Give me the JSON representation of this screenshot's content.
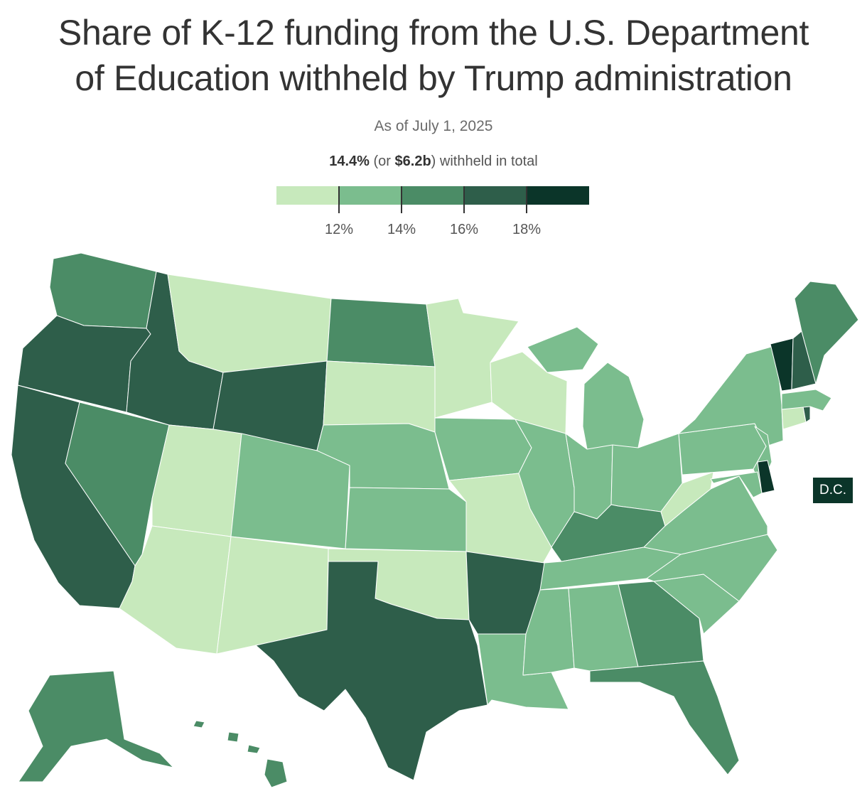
{
  "title_line1": "Share of K-12 funding from the U.S. Department",
  "title_line2": "of Education withheld by Trump administration",
  "subtitle": "As of July 1, 2025",
  "total": {
    "percent": "14.4%",
    "pre": " (or ",
    "amount": "$6.2b",
    "post": ") withheld in total"
  },
  "legend": {
    "bins": [
      "#c7e9bc",
      "#7bbd8e",
      "#4b8c66",
      "#2e5e4a",
      "#0b3529"
    ],
    "ticks": [
      "12%",
      "14%",
      "16%",
      "18%"
    ]
  },
  "dc_label": "D.C.",
  "dc_color": "#0b3529",
  "map_data": {
    "WA": 3,
    "OR": 4,
    "CA": 4,
    "NV": 3,
    "ID": 4,
    "MT": 1,
    "WY": 4,
    "UT": 1,
    "AZ": 1,
    "CO": 2,
    "NM": 1,
    "ND": 3,
    "SD": 1,
    "NE": 2,
    "KS": 2,
    "OK": 1,
    "TX": 4,
    "MN": 1,
    "IA": 2,
    "MO": 1,
    "AR": 4,
    "LA": 2,
    "WI": 1,
    "IL": 2,
    "MI": 2,
    "IN": 2,
    "OH": 2,
    "KY": 3,
    "TN": 2,
    "MS": 2,
    "AL": 2,
    "GA": 3,
    "FL": 3,
    "SC": 2,
    "NC": 2,
    "VA": 2,
    "WV": 1,
    "PA": 2,
    "NY": 2,
    "NJ": 2,
    "DE": 5,
    "MD": 2,
    "CT": 1,
    "RI": 4,
    "MA": 2,
    "VT": 5,
    "NH": 4,
    "ME": 3,
    "AK": 3,
    "HI": 3
  }
}
